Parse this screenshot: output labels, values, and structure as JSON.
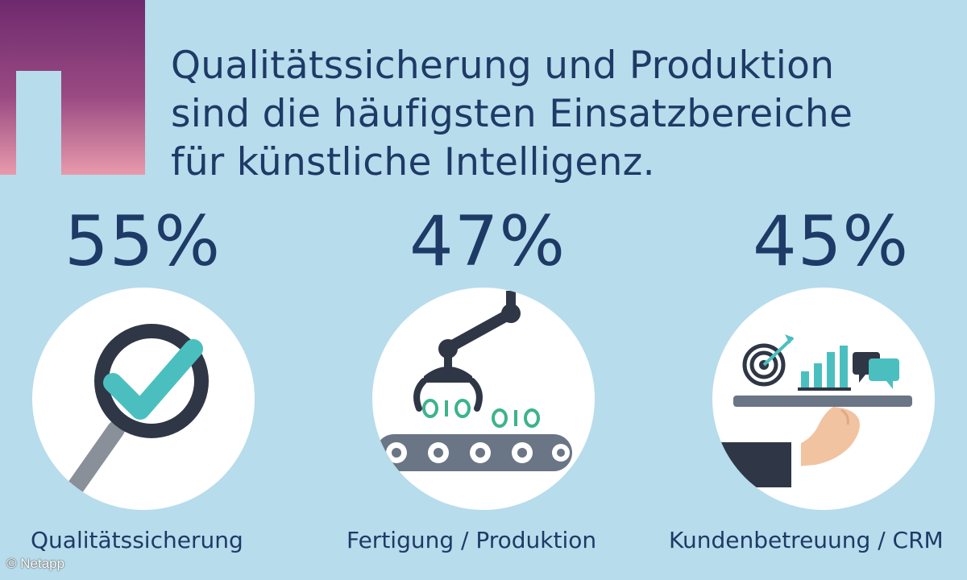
{
  "headline": {
    "line1": "Qualitätssicherung und Produktion",
    "line2": "sind die häufigsten Einsatzbereiche",
    "line3": "für künstliche Intelligenz."
  },
  "items": [
    {
      "percent": "55%",
      "label": "Qualitätssicherung",
      "icon": "magnifier-check-icon"
    },
    {
      "percent": "47%",
      "label": "Fertigung / Produktion",
      "icon": "robot-arm-conveyor-icon"
    },
    {
      "percent": "45%",
      "label": "Kundenbetreuung / CRM",
      "icon": "service-tray-icon"
    }
  ],
  "credit": "© Netapp",
  "colors": {
    "background": "#b7dcec",
    "text": "#1e3a66",
    "accent_teal": "#4bbfc0",
    "accent_green": "#3cb38c",
    "dark_gray": "#2f3746"
  }
}
